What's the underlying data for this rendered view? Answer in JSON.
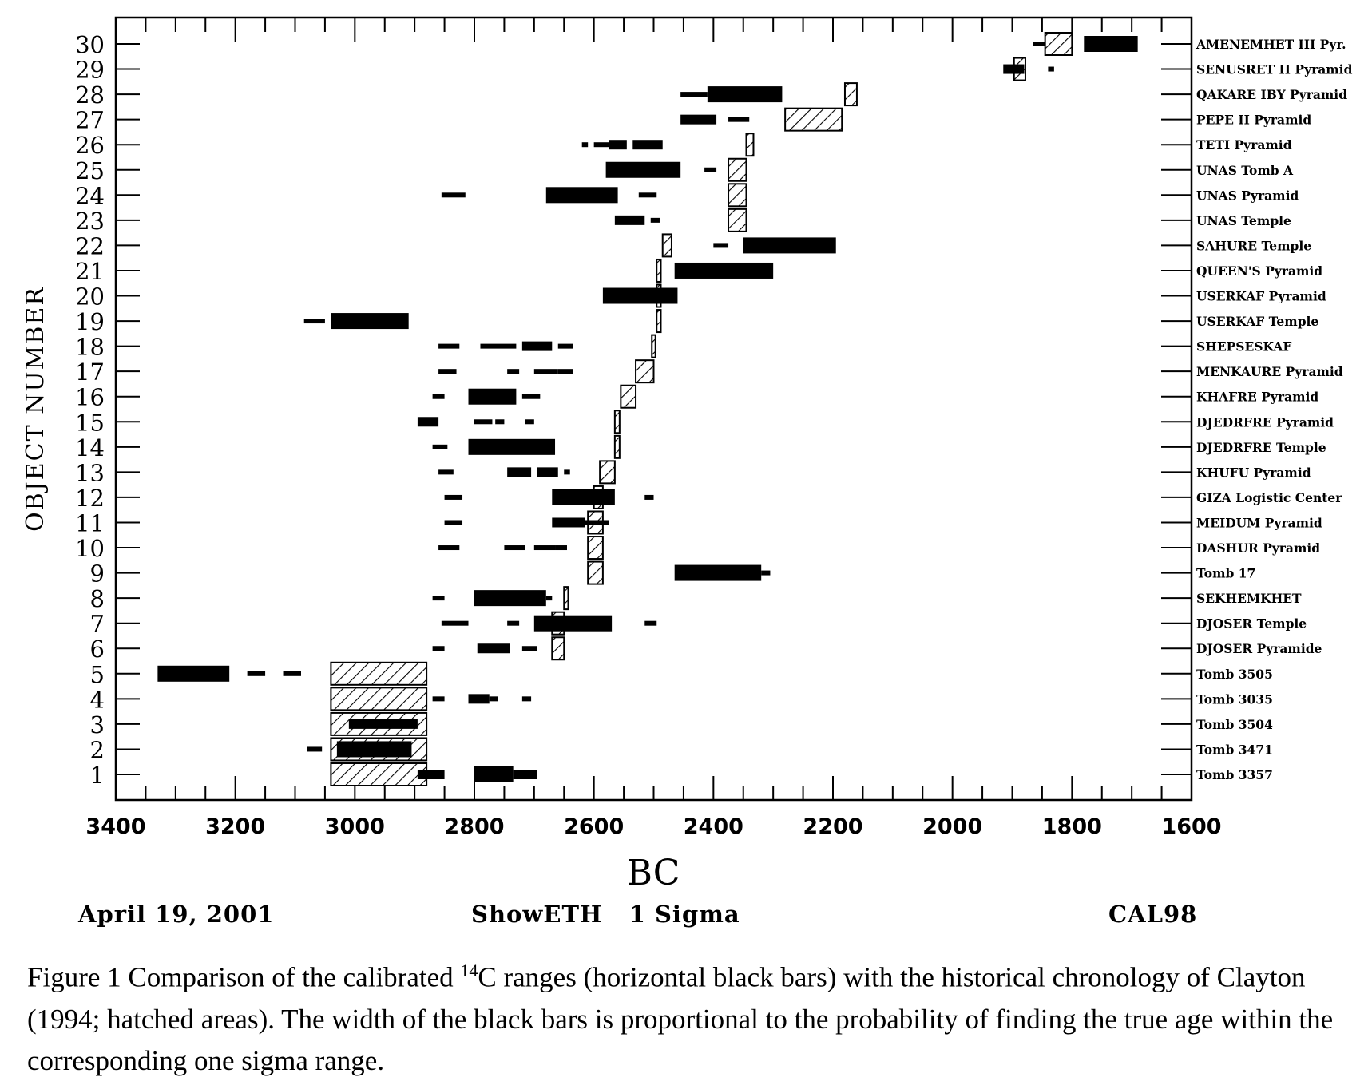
{
  "chart_data": {
    "type": "range-bar",
    "xlabel": "BC",
    "ylabel": "OBJECT NUMBER",
    "xlim": [
      3400,
      1600
    ],
    "ylim": [
      0,
      30
    ],
    "x_ticks": [
      3400,
      3200,
      3000,
      2800,
      2600,
      2400,
      2200,
      2000,
      1800,
      1600
    ],
    "y_ticks": [
      1,
      2,
      3,
      4,
      5,
      6,
      7,
      8,
      9,
      10,
      11,
      12,
      13,
      14,
      15,
      16,
      17,
      18,
      19,
      20,
      21,
      22,
      23,
      24,
      25,
      26,
      27,
      28,
      29,
      30
    ],
    "objects": [
      {
        "id": 1,
        "label": "Tomb 3357",
        "c14": [
          [
            2895,
            2850,
            "m"
          ],
          [
            2800,
            2735,
            "b"
          ],
          [
            2735,
            2695,
            "m"
          ]
        ],
        "historical": [
          [
            3040,
            2880
          ]
        ]
      },
      {
        "id": 2,
        "label": "Tomb 3471",
        "c14": [
          [
            3080,
            3055,
            "s"
          ],
          [
            3030,
            2905,
            "b"
          ]
        ],
        "historical": [
          [
            3040,
            2880
          ]
        ]
      },
      {
        "id": 3,
        "label": "Tomb 3504",
        "c14": [
          [
            3010,
            2895,
            "m"
          ]
        ],
        "historical": [
          [
            3040,
            2880
          ]
        ]
      },
      {
        "id": 4,
        "label": "Tomb 3035",
        "c14": [
          [
            2870,
            2850,
            "s"
          ],
          [
            2810,
            2775,
            "m"
          ],
          [
            2775,
            2760,
            "s"
          ],
          [
            2720,
            2705,
            "s"
          ]
        ],
        "historical": [
          [
            3040,
            2880
          ]
        ]
      },
      {
        "id": 5,
        "label": "Tomb 3505",
        "c14": [
          [
            3330,
            3210,
            "b"
          ],
          [
            3180,
            3150,
            "s"
          ],
          [
            3120,
            3090,
            "s"
          ]
        ],
        "historical": [
          [
            3040,
            2880
          ]
        ]
      },
      {
        "id": 6,
        "label": "DJOSER Pyramide",
        "c14": [
          [
            2870,
            2850,
            "s"
          ],
          [
            2795,
            2740,
            "m"
          ],
          [
            2720,
            2695,
            "s"
          ]
        ],
        "historical": [
          [
            2670,
            2650
          ]
        ]
      },
      {
        "id": 7,
        "label": "DJOSER Temple",
        "c14": [
          [
            2855,
            2810,
            "s"
          ],
          [
            2745,
            2725,
            "s"
          ],
          [
            2700,
            2570,
            "b"
          ],
          [
            2515,
            2495,
            "s"
          ]
        ],
        "historical": [
          [
            2670,
            2650
          ]
        ]
      },
      {
        "id": 8,
        "label": "SEKHEMKHET",
        "c14": [
          [
            2870,
            2850,
            "s"
          ],
          [
            2800,
            2680,
            "b"
          ],
          [
            2680,
            2670,
            "s"
          ]
        ],
        "historical": [
          [
            2650,
            2643
          ]
        ]
      },
      {
        "id": 9,
        "label": "Tomb 17",
        "c14": [
          [
            2465,
            2320,
            "b"
          ],
          [
            2320,
            2305,
            "s"
          ]
        ],
        "historical": [
          [
            2610,
            2585
          ]
        ]
      },
      {
        "id": 10,
        "label": "DASHUR Pyramid",
        "c14": [
          [
            2860,
            2825,
            "s"
          ],
          [
            2750,
            2715,
            "s"
          ],
          [
            2700,
            2665,
            "s"
          ],
          [
            2665,
            2645,
            "s"
          ]
        ],
        "historical": [
          [
            2610,
            2585
          ]
        ]
      },
      {
        "id": 11,
        "label": "MEIDUM Pyramid",
        "c14": [
          [
            2850,
            2820,
            "s"
          ],
          [
            2670,
            2615,
            "m"
          ],
          [
            2615,
            2575,
            "s"
          ]
        ],
        "historical": [
          [
            2610,
            2585
          ]
        ]
      },
      {
        "id": 12,
        "label": "GIZA Logistic Center",
        "c14": [
          [
            2850,
            2820,
            "s"
          ],
          [
            2670,
            2565,
            "b"
          ],
          [
            2515,
            2500,
            "s"
          ]
        ],
        "historical": [
          [
            2600,
            2585
          ]
        ]
      },
      {
        "id": 13,
        "label": "KHUFU Pyramid",
        "c14": [
          [
            2860,
            2835,
            "s"
          ],
          [
            2745,
            2705,
            "m"
          ],
          [
            2695,
            2660,
            "m"
          ],
          [
            2650,
            2640,
            "s"
          ]
        ],
        "historical": [
          [
            2590,
            2565
          ]
        ]
      },
      {
        "id": 14,
        "label": "DJEDRFRE Temple",
        "c14": [
          [
            2870,
            2845,
            "s"
          ],
          [
            2810,
            2665,
            "b"
          ]
        ],
        "historical": [
          [
            2565,
            2557
          ]
        ]
      },
      {
        "id": 15,
        "label": "DJEDRFRE Pyramid",
        "c14": [
          [
            2895,
            2860,
            "m"
          ],
          [
            2800,
            2770,
            "s"
          ],
          [
            2765,
            2750,
            "s"
          ],
          [
            2715,
            2700,
            "s"
          ]
        ],
        "historical": [
          [
            2565,
            2557
          ]
        ]
      },
      {
        "id": 16,
        "label": "KHAFRE Pyramid",
        "c14": [
          [
            2870,
            2850,
            "s"
          ],
          [
            2810,
            2730,
            "b"
          ],
          [
            2720,
            2690,
            "s"
          ]
        ],
        "historical": [
          [
            2555,
            2530
          ]
        ]
      },
      {
        "id": 17,
        "label": "MENKAURE Pyramid",
        "c14": [
          [
            2860,
            2830,
            "s"
          ],
          [
            2745,
            2725,
            "s"
          ],
          [
            2700,
            2660,
            "s"
          ],
          [
            2660,
            2635,
            "s"
          ]
        ],
        "historical": [
          [
            2530,
            2500
          ]
        ]
      },
      {
        "id": 18,
        "label": "SHEPSESKAF",
        "c14": [
          [
            2860,
            2825,
            "s"
          ],
          [
            2790,
            2760,
            "s"
          ],
          [
            2760,
            2730,
            "s"
          ],
          [
            2720,
            2670,
            "m"
          ],
          [
            2660,
            2635,
            "s"
          ]
        ],
        "historical": [
          [
            2503,
            2497
          ]
        ]
      },
      {
        "id": 19,
        "label": "USERKAF Temple",
        "c14": [
          [
            3085,
            3050,
            "s"
          ],
          [
            3040,
            2910,
            "b"
          ]
        ],
        "historical": [
          [
            2495,
            2488
          ]
        ]
      },
      {
        "id": 20,
        "label": "USERKAF Pyramid",
        "c14": [
          [
            2585,
            2460,
            "b"
          ]
        ],
        "historical": [
          [
            2495,
            2488
          ]
        ]
      },
      {
        "id": 21,
        "label": "QUEEN'S Pyramid",
        "c14": [
          [
            2465,
            2300,
            "b"
          ]
        ],
        "historical": [
          [
            2495,
            2488
          ]
        ]
      },
      {
        "id": 22,
        "label": "SAHURE Temple",
        "c14": [
          [
            2400,
            2375,
            "s"
          ],
          [
            2350,
            2195,
            "b"
          ]
        ],
        "historical": [
          [
            2485,
            2470
          ]
        ]
      },
      {
        "id": 23,
        "label": "UNAS Temple",
        "c14": [
          [
            2565,
            2515,
            "m"
          ],
          [
            2505,
            2490,
            "s"
          ]
        ],
        "historical": [
          [
            2375,
            2345
          ]
        ]
      },
      {
        "id": 24,
        "label": "UNAS Pyramid",
        "c14": [
          [
            2855,
            2815,
            "s"
          ],
          [
            2680,
            2560,
            "b"
          ],
          [
            2525,
            2495,
            "s"
          ]
        ],
        "historical": [
          [
            2375,
            2345
          ]
        ]
      },
      {
        "id": 25,
        "label": "UNAS Tomb A",
        "c14": [
          [
            2580,
            2455,
            "b"
          ],
          [
            2415,
            2395,
            "s"
          ]
        ],
        "historical": [
          [
            2375,
            2345
          ]
        ]
      },
      {
        "id": 26,
        "label": "TETI Pyramid",
        "c14": [
          [
            2620,
            2610,
            "s"
          ],
          [
            2600,
            2575,
            "s"
          ],
          [
            2575,
            2545,
            "m"
          ],
          [
            2535,
            2485,
            "m"
          ]
        ],
        "historical": [
          [
            2345,
            2333
          ]
        ]
      },
      {
        "id": 27,
        "label": "PEPE II Pyramid",
        "c14": [
          [
            2455,
            2395,
            "m"
          ],
          [
            2375,
            2340,
            "s"
          ]
        ],
        "historical": [
          [
            2280,
            2185
          ]
        ]
      },
      {
        "id": 28,
        "label": "QAKARE IBY Pyramid",
        "c14": [
          [
            2455,
            2410,
            "s"
          ],
          [
            2410,
            2285,
            "b"
          ]
        ],
        "historical": [
          [
            2180,
            2160
          ]
        ]
      },
      {
        "id": 29,
        "label": "SENUSRET II Pyramid",
        "c14": [
          [
            1915,
            1880,
            "m"
          ],
          [
            1840,
            1830,
            "s"
          ]
        ],
        "historical": [
          [
            1897,
            1878
          ]
        ]
      },
      {
        "id": 30,
        "label": "AMENEMHET III Pyr.",
        "c14": [
          [
            1865,
            1845,
            "s"
          ],
          [
            1780,
            1690,
            "b"
          ]
        ],
        "historical": [
          [
            1845,
            1800
          ]
        ]
      }
    ]
  },
  "footer": {
    "date": "April 19, 2001",
    "program": "ShowETH   1 Sigma",
    "calibration": "CAL98"
  },
  "caption": {
    "prefix": "Figure 1  Comparison of the calibrated ",
    "superscript": "14",
    "rest": "C ranges (horizontal black bars) with the historical chronology of Clayton (1994; hatched areas). The width of the black bars is proportional to the probability of finding the true age within the corresponding one sigma range."
  }
}
